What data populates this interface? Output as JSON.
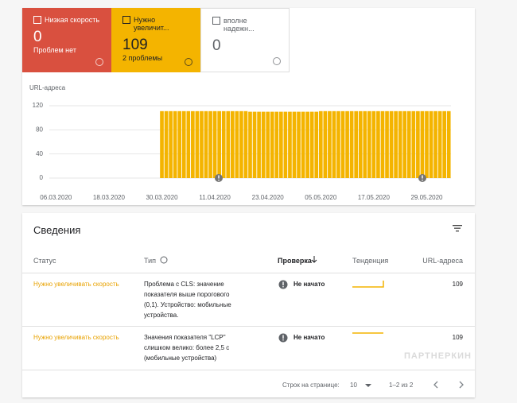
{
  "tiles": [
    {
      "label": "Низкая скорость",
      "value": 0,
      "caption": "Проблем нет"
    },
    {
      "label": "Нужно увеличит...",
      "value": 109,
      "caption": "2 проблемы"
    },
    {
      "label": "вполне надежн...",
      "value": 0
    }
  ],
  "chart_data": {
    "type": "bar",
    "y_label": "URL-адреса",
    "color": "#f4b400",
    "ylim": [
      0,
      120
    ],
    "yticks": [
      0,
      40,
      80,
      120
    ],
    "grid": true,
    "categories": [
      null,
      "06.03.2020",
      null,
      null,
      null,
      null,
      null,
      null,
      null,
      null,
      null,
      null,
      null,
      "18.03.2020",
      null,
      null,
      null,
      null,
      null,
      null,
      null,
      null,
      null,
      null,
      null,
      "30.03.2020",
      null,
      null,
      null,
      null,
      null,
      null,
      null,
      null,
      null,
      null,
      null,
      "11.04.2020",
      null,
      null,
      null,
      null,
      null,
      null,
      null,
      null,
      null,
      null,
      null,
      "23.04.2020",
      null,
      null,
      null,
      null,
      null,
      null,
      null,
      null,
      null,
      null,
      null,
      "05.05.2020",
      null,
      null,
      null,
      null,
      null,
      null,
      null,
      null,
      null,
      null,
      null,
      "17.05.2020",
      null,
      null,
      null,
      null,
      null,
      null,
      null,
      null,
      null,
      null,
      null,
      "29.05.2020",
      null,
      null,
      null,
      null,
      null
    ],
    "values": [
      null,
      null,
      null,
      null,
      null,
      null,
      null,
      null,
      null,
      null,
      null,
      null,
      null,
      null,
      null,
      null,
      null,
      null,
      null,
      null,
      null,
      null,
      null,
      null,
      null,
      111,
      111,
      111,
      111,
      111,
      111,
      111,
      111,
      111,
      111,
      111,
      111,
      111,
      111,
      111,
      111,
      111,
      111,
      111,
      111,
      110,
      110,
      110,
      110,
      110,
      110,
      110,
      110,
      110,
      110,
      110,
      110,
      110,
      110,
      110,
      110,
      111,
      111,
      111,
      111,
      111,
      111,
      111,
      111,
      111,
      111,
      111,
      111,
      111,
      111,
      111,
      111,
      111,
      111,
      111,
      111,
      111,
      111,
      111,
      111,
      111,
      111,
      111,
      111,
      111,
      111
    ]
  },
  "details": {
    "title": "Сведения",
    "columns": [
      "Статус",
      "Тип",
      "Проверка",
      "Тенденция",
      "URL-адреса"
    ],
    "rows": [
      {
        "status": "Нужно увеличивать скорость",
        "type": "Проблема с CLS: значение показателя выше порогового (0,1). Устройство: мобильные устройства.",
        "check": "Не начато",
        "urls": 109
      },
      {
        "status": "Нужно увеличивать скорость",
        "type": "Значения показателя \"LCP\" слишком велико: более 2,5 с (мобильные устройства)",
        "check": "Не начато",
        "urls": 109
      }
    ]
  },
  "pagination": {
    "rows_per_page_label": "Строк на странице:",
    "rows_per_page": 10,
    "range": "1–2 из 2"
  },
  "watermark": "ПАРТНЕРКИН"
}
